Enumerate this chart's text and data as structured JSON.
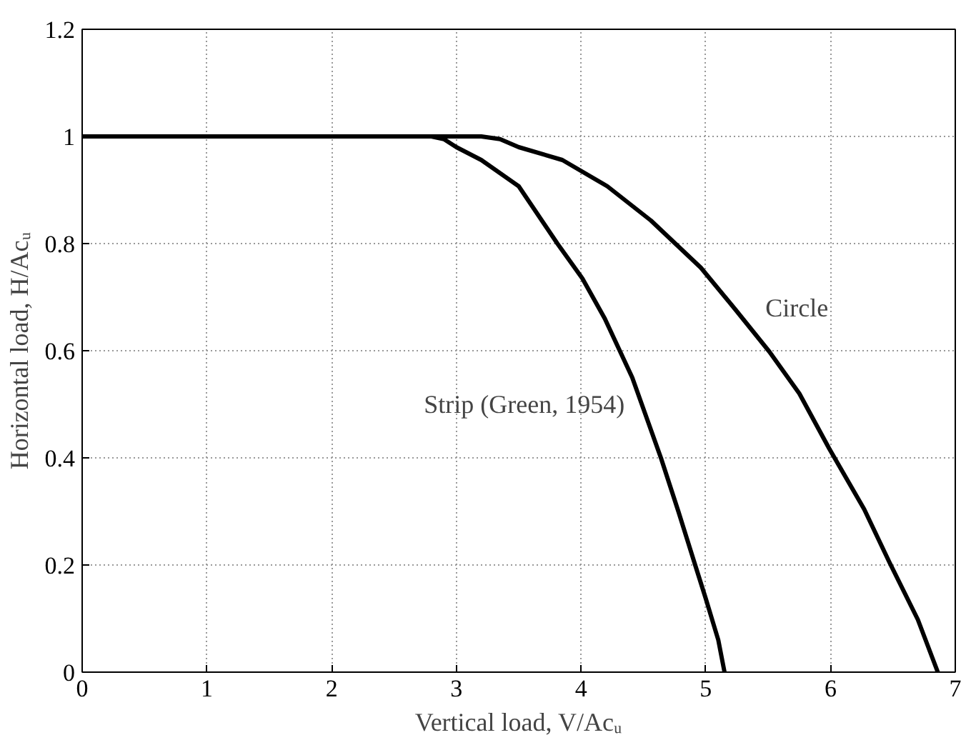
{
  "chart_data": {
    "type": "line",
    "xlabel": "Vertical load, V/Acᵤ",
    "ylabel": "Horizontal load, H/Acᵤ",
    "xlim": [
      0,
      7
    ],
    "ylim": [
      0,
      1.2
    ],
    "xticks": [
      0,
      1,
      2,
      3,
      4,
      5,
      6,
      7
    ],
    "yticks": [
      0,
      0.2,
      0.4,
      0.6,
      0.8,
      1,
      1.2
    ],
    "grid": true,
    "line_style": "solid",
    "marker": "none",
    "series": [
      {
        "name": "Strip (Green, 1954)",
        "color": "#000000",
        "x": [
          0,
          2.8,
          2.9,
          3.0,
          3.2,
          3.5,
          3.81,
          4.01,
          4.19,
          4.41,
          4.64,
          4.78,
          4.92,
          5.0,
          5.1,
          5.15
        ],
        "values": [
          1,
          1,
          0.995,
          0.98,
          0.956,
          0.907,
          0.8,
          0.735,
          0.66,
          0.55,
          0.4,
          0.3,
          0.196,
          0.137,
          0.06,
          0
        ]
      },
      {
        "name": "Circle",
        "color": "#000000",
        "x": [
          0,
          3.2,
          3.35,
          3.5,
          3.85,
          4.21,
          4.56,
          4.96,
          5.24,
          5.51,
          5.75,
          5.99,
          6.27,
          6.47,
          6.7,
          6.86
        ],
        "values": [
          1,
          1,
          0.995,
          0.98,
          0.956,
          0.907,
          0.843,
          0.755,
          0.676,
          0.598,
          0.52,
          0.417,
          0.304,
          0.206,
          0.098,
          0
        ]
      }
    ]
  }
}
